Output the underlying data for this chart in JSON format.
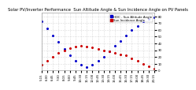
{
  "title": "Solar PV/Inverter Performance  Sun Altitude Angle & Sun Incidence Angle on PV Panels",
  "legend_blue": "HOC - Sun Altitude Angle",
  "legend_red": "Sun Incidence Angle",
  "blue_x": [
    0,
    1,
    2,
    3,
    4,
    5,
    6,
    7,
    8,
    9,
    10,
    11,
    12,
    13,
    14,
    15,
    16,
    17,
    18,
    19,
    20
  ],
  "blue_y": [
    72,
    62,
    52,
    42,
    32,
    22,
    14,
    8,
    5,
    8,
    14,
    20,
    28,
    36,
    44,
    52,
    60,
    66,
    72,
    76,
    78
  ],
  "red_x": [
    0,
    1,
    2,
    3,
    4,
    5,
    6,
    7,
    8,
    9,
    10,
    11,
    12,
    13,
    14,
    15,
    16,
    17,
    18,
    19,
    20
  ],
  "red_y": [
    8,
    14,
    20,
    26,
    30,
    33,
    35,
    36,
    35,
    34,
    32,
    30,
    28,
    26,
    24,
    22,
    18,
    14,
    10,
    6,
    3
  ],
  "xlim": [
    0,
    20
  ],
  "ylim": [
    0,
    85
  ],
  "yticks": [
    0,
    10,
    20,
    30,
    40,
    50,
    60,
    70,
    80
  ],
  "xtick_labels": [
    "5:15",
    "6:00",
    "6:45",
    "7:30",
    "8:15",
    "9:00",
    "9:45",
    "10:30",
    "11:15",
    "12:00",
    "12:45",
    "13:30",
    "14:15",
    "15:00",
    "15:45",
    "16:30",
    "17:15",
    "18:00",
    "18:45",
    "19:30",
    "20:15"
  ],
  "xtick_positions": [
    0,
    1,
    2,
    3,
    4,
    5,
    6,
    7,
    8,
    9,
    10,
    11,
    12,
    13,
    14,
    15,
    16,
    17,
    18,
    19,
    20
  ],
  "bg_color": "#ffffff",
  "plot_bg": "#ffffff",
  "grid_color": "#aaaaaa",
  "blue_color": "#0000cc",
  "red_color": "#cc0000",
  "text_color": "#000000",
  "title_fontsize": 3.8,
  "tick_fontsize": 2.8,
  "legend_fontsize": 2.8,
  "marker_size": 1.2,
  "legend_blue_bg": "#0000cc",
  "legend_red_bg": "#cc0000"
}
